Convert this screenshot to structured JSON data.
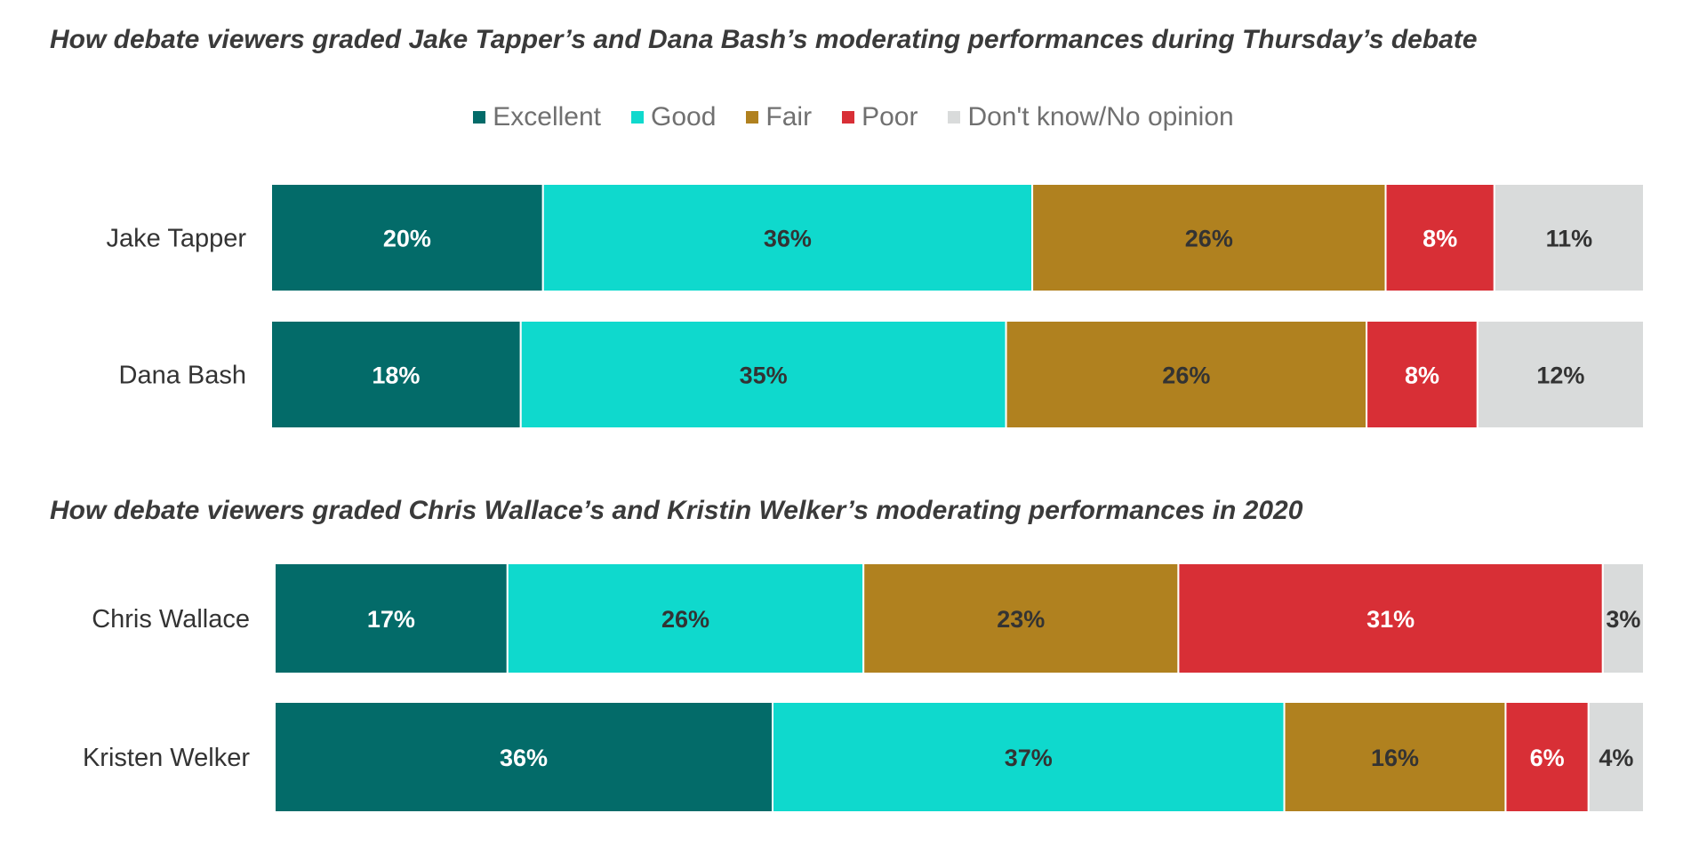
{
  "colors": {
    "Excellent": "#036b69",
    "Good": "#0fd9cd",
    "Fair": "#b0811f",
    "Poor": "#d82f36",
    "Don't know/No opinion": "#d9dbdb"
  },
  "label_colors": {
    "Excellent": "#ffffff",
    "Good": "#333333",
    "Fair": "#333333",
    "Poor": "#ffffff",
    "Don't know/No opinion": "#333333"
  },
  "legend": [
    "Excellent",
    "Good",
    "Fair",
    "Poor",
    "Don't know/No opinion"
  ],
  "chart_data": [
    {
      "type": "bar",
      "orientation": "horizontal",
      "stacked": true,
      "title": "How debate viewers graded Jake Tapper’s and Dana Bash’s moderating performances during Thursday’s debate",
      "categories": [
        "Jake Tapper",
        "Dana Bash"
      ],
      "series": [
        {
          "name": "Excellent",
          "values": [
            20,
            18
          ]
        },
        {
          "name": "Good",
          "values": [
            36,
            35
          ]
        },
        {
          "name": "Fair",
          "values": [
            26,
            26
          ]
        },
        {
          "name": "Poor",
          "values": [
            8,
            8
          ]
        },
        {
          "name": "Don't know/No opinion",
          "values": [
            11,
            12
          ]
        }
      ],
      "legend_position": "top"
    },
    {
      "type": "bar",
      "orientation": "horizontal",
      "stacked": true,
      "title": "How debate viewers graded Chris Wallace’s and Kristin Welker’s moderating performances in 2020",
      "categories": [
        "Chris Wallace",
        "Kristen Welker"
      ],
      "series": [
        {
          "name": "Excellent",
          "values": [
            17,
            36
          ]
        },
        {
          "name": "Good",
          "values": [
            26,
            37
          ]
        },
        {
          "name": "Fair",
          "values": [
            23,
            16
          ]
        },
        {
          "name": "Poor",
          "values": [
            31,
            6
          ]
        },
        {
          "name": "Don't know/No opinion",
          "values": [
            3,
            4
          ]
        }
      ]
    }
  ]
}
